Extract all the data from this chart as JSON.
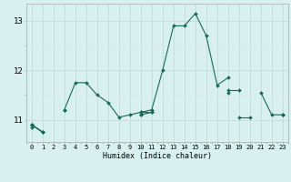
{
  "xlabel": "Humidex (Indice chaleur)",
  "x": [
    0,
    1,
    2,
    3,
    4,
    5,
    6,
    7,
    8,
    9,
    10,
    11,
    12,
    13,
    14,
    15,
    16,
    17,
    18,
    19,
    20,
    21,
    22,
    23
  ],
  "line1": [
    10.9,
    10.75,
    null,
    11.2,
    11.75,
    11.75,
    11.5,
    11.35,
    11.05,
    11.1,
    11.15,
    11.2,
    12.0,
    12.9,
    12.9,
    13.15,
    12.7,
    11.7,
    11.85,
    null,
    null,
    11.55,
    11.1,
    11.1
  ],
  "line2": [
    10.9,
    10.75,
    null,
    null,
    null,
    null,
    null,
    null,
    null,
    null,
    11.15,
    11.15,
    null,
    null,
    null,
    null,
    null,
    null,
    null,
    11.05,
    11.05,
    null,
    null,
    11.1
  ],
  "line3": [
    10.9,
    10.75,
    null,
    11.2,
    null,
    null,
    null,
    null,
    null,
    null,
    11.1,
    11.15,
    null,
    null,
    null,
    null,
    null,
    null,
    11.6,
    11.6,
    null,
    null,
    null,
    null
  ],
  "line4": [
    10.85,
    null,
    null,
    null,
    null,
    null,
    null,
    null,
    null,
    null,
    11.1,
    null,
    null,
    null,
    null,
    null,
    null,
    null,
    11.55,
    null,
    null,
    null,
    null,
    11.1
  ],
  "color": "#1a6b5a",
  "bg_color": "#d8f0ee",
  "grid_major_color": "#c8dedd",
  "grid_minor_color": "#daecea",
  "ylim": [
    10.55,
    13.35
  ],
  "yticks": [
    11,
    12,
    13
  ],
  "xticks": [
    0,
    1,
    2,
    3,
    4,
    5,
    6,
    7,
    8,
    9,
    10,
    11,
    12,
    13,
    14,
    15,
    16,
    17,
    18,
    19,
    20,
    21,
    22,
    23
  ]
}
